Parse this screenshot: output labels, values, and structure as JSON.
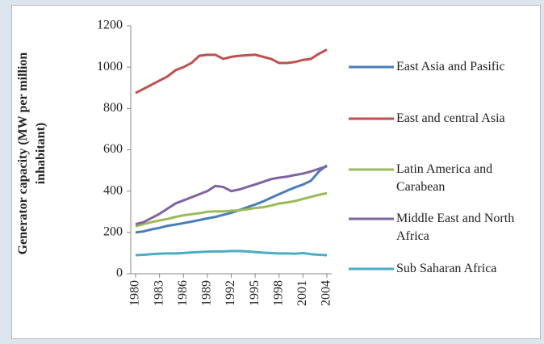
{
  "chart_data": {
    "type": "line",
    "y_label": "Generator capacity (MW per million inhabitant)",
    "x": [
      1980,
      1981,
      1982,
      1983,
      1984,
      1985,
      1986,
      1987,
      1988,
      1989,
      1990,
      1991,
      1992,
      1993,
      1994,
      1995,
      1996,
      1997,
      1998,
      1999,
      2000,
      2001,
      2002,
      2003,
      2004
    ],
    "xlim": [
      1980,
      2004
    ],
    "xticks": [
      1980,
      1983,
      1986,
      1989,
      1992,
      1995,
      1998,
      2001,
      2004
    ],
    "ylim": [
      0,
      1200
    ],
    "yticks": [
      0,
      200,
      400,
      600,
      800,
      1000,
      1200
    ],
    "legend": "right",
    "series": [
      {
        "name": "East Asia and Pasific",
        "color": "#4a7ebb",
        "values": [
          200,
          205,
          215,
          222,
          232,
          238,
          245,
          252,
          260,
          268,
          275,
          285,
          295,
          308,
          322,
          335,
          350,
          368,
          385,
          402,
          418,
          432,
          450,
          495,
          525
        ]
      },
      {
        "name": "East and central Asia",
        "color": "#c0504d",
        "values": [
          875,
          895,
          915,
          935,
          955,
          985,
          1000,
          1020,
          1055,
          1060,
          1060,
          1040,
          1050,
          1055,
          1058,
          1060,
          1050,
          1040,
          1020,
          1020,
          1025,
          1035,
          1040,
          1065,
          1085
        ]
      },
      {
        "name": "Latin America and Carabean",
        "color": "#9bbb59",
        "values": [
          230,
          240,
          250,
          258,
          265,
          275,
          283,
          288,
          293,
          300,
          302,
          302,
          305,
          307,
          312,
          318,
          322,
          330,
          340,
          345,
          352,
          362,
          372,
          382,
          390
        ]
      },
      {
        "name": "Middle East and North Africa",
        "color": "#8064a2",
        "values": [
          240,
          250,
          270,
          290,
          315,
          340,
          355,
          370,
          385,
          400,
          425,
          420,
          400,
          408,
          420,
          432,
          445,
          458,
          465,
          470,
          478,
          485,
          495,
          508,
          520
        ]
      },
      {
        "name": "Sub Saharan Africa",
        "color": "#4bacc6",
        "values": [
          90,
          92,
          95,
          97,
          98,
          98,
          100,
          103,
          105,
          107,
          108,
          108,
          110,
          110,
          108,
          105,
          102,
          100,
          98,
          98,
          97,
          100,
          95,
          92,
          90
        ]
      }
    ]
  }
}
